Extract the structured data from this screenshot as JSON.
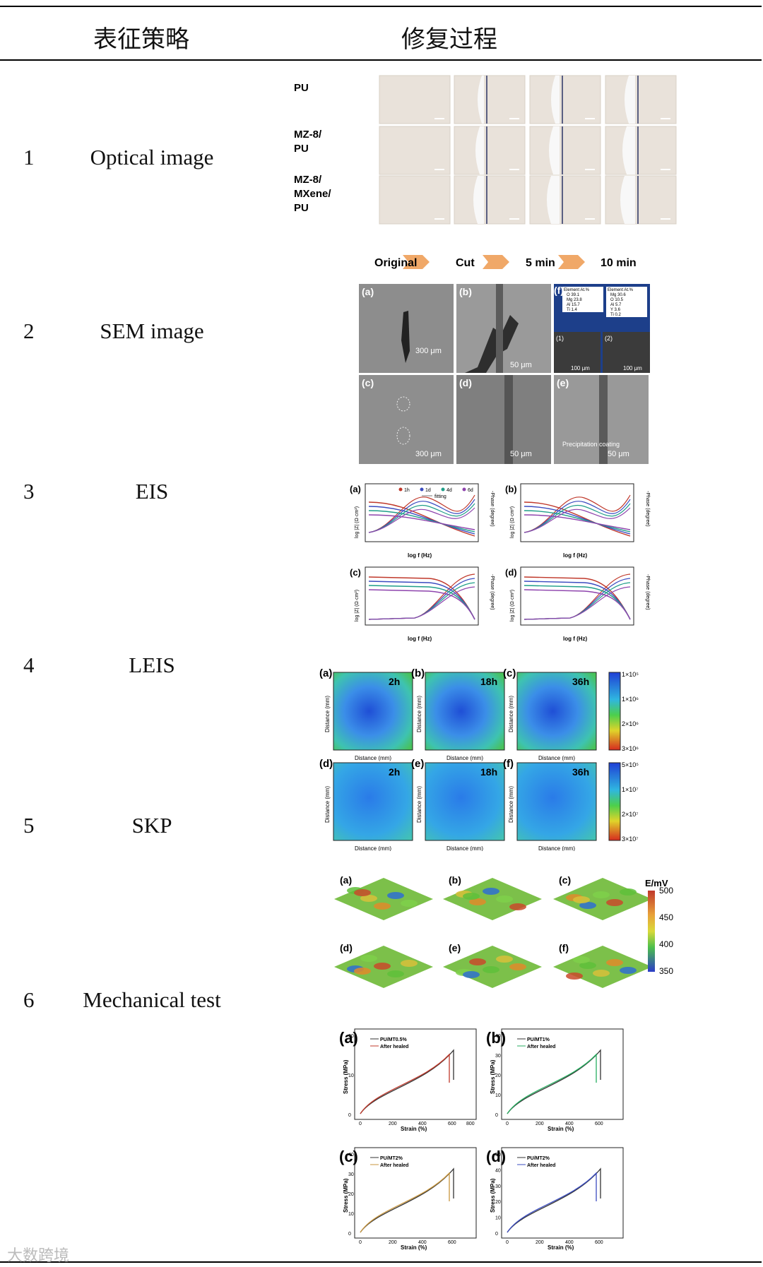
{
  "header": {
    "col1": "表征策略",
    "col2": "修复过程"
  },
  "rows": [
    {
      "num": "1",
      "label": "Optical image"
    },
    {
      "num": "2",
      "label": "SEM image"
    },
    {
      "num": "3",
      "label": "EIS"
    },
    {
      "num": "4",
      "label": "LEIS"
    },
    {
      "num": "5",
      "label": "SKP"
    },
    {
      "num": "6",
      "label": "Mechanical test"
    }
  ],
  "optical": {
    "rows": [
      "PU",
      "MZ-8/\nPU",
      "MZ-8/\nMXene/\nPU"
    ],
    "steps": [
      "Original",
      "Cut",
      "5 min",
      "10 min"
    ]
  },
  "sem": {
    "panels": [
      "(a)",
      "(b)",
      "(c)",
      "(d)",
      "(e)",
      "(f)"
    ],
    "scales": [
      "300 μm",
      "50 μm",
      "300 μm",
      "50 μm",
      "50 μm",
      "100 μm",
      "100 μm"
    ],
    "annot": "Precipitation coating",
    "sub": [
      "(1)",
      "(2)"
    ],
    "table_head": [
      "Element",
      "At.%"
    ],
    "table1": [
      [
        "O",
        "39.1"
      ],
      [
        "Mg",
        "23.8"
      ],
      [
        "Al",
        "15.7"
      ],
      [
        "Ti",
        "1.4"
      ]
    ],
    "table2": [
      [
        "Mg",
        "30.6"
      ],
      [
        "O",
        "10.5"
      ],
      [
        "Al",
        "5.7"
      ],
      [
        "Y",
        "3.6"
      ],
      [
        "Ti",
        "0.2"
      ]
    ]
  },
  "eis": {
    "panels": [
      "(a)",
      "(b)",
      "(c)",
      "(d)"
    ],
    "xlabel": "log f (Hz)",
    "ylabel_left": "log |Z| (Ω·cm²)",
    "ylabel_right": "-Phase (degree)",
    "legend": [
      "1h",
      "1d",
      "4d",
      "6d",
      "fitting"
    ]
  },
  "leis": {
    "panels": [
      "(a)",
      "(b)",
      "(c)",
      "(d)",
      "(e)",
      "(f)"
    ],
    "times": [
      "2h",
      "18h",
      "36h",
      "2h",
      "18h",
      "36h"
    ],
    "xlabel": "Distance (mm)",
    "ylabel": "Distance (mm)",
    "scale_top": [
      "1×10⁵",
      "1×10⁶",
      "2×10⁶",
      "3×10⁶"
    ],
    "scale_bottom": [
      "5×10⁵",
      "1×10⁷",
      "2×10⁷",
      "3×10⁷"
    ]
  },
  "skp": {
    "panels": [
      "(a)",
      "(b)",
      "(c)",
      "(d)",
      "(e)",
      "(f)"
    ],
    "unit": "E/mV",
    "scale": [
      "500",
      "450",
      "400",
      "350"
    ]
  },
  "mech": {
    "panels": [
      "(a)",
      "(b)",
      "(c)",
      "(d)"
    ],
    "legend": [
      [
        "PU/MT0.5%",
        "After healed"
      ],
      [
        "PU/MT1%",
        "After healed"
      ],
      [
        "PU/MT2%",
        "After healed"
      ],
      [
        "PU/MT2%",
        "After healed"
      ]
    ],
    "xlabel": "Strain (%)",
    "ylabel": "Stress (MPa)",
    "colors": [
      "#c0392b",
      "#27ae60",
      "#c8963e",
      "#3b4cc0"
    ],
    "yticks": [
      [
        "0",
        "10",
        "20"
      ],
      [
        "0",
        "10",
        "20",
        "30",
        "40"
      ],
      [
        "0",
        "10",
        "20",
        "30",
        "40"
      ],
      [
        "0",
        "10",
        "20",
        "30",
        "40",
        "50"
      ]
    ],
    "xticks": [
      "0",
      "200",
      "400",
      "600"
    ],
    "xtick_extra": "800"
  },
  "watermark": "大数跨境"
}
